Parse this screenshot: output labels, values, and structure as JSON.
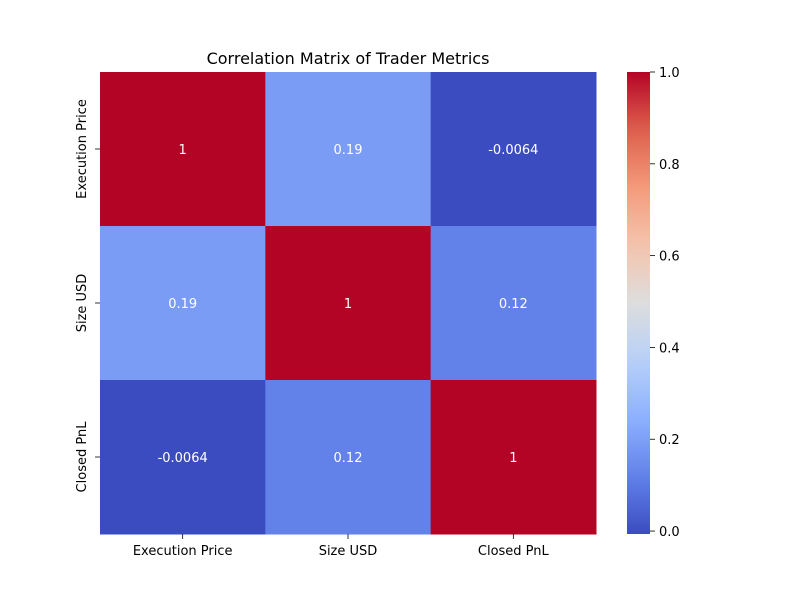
{
  "chart_data": {
    "type": "heatmap",
    "title": "Correlation Matrix of Trader Metrics",
    "x_categories": [
      "Execution Price",
      "Size USD",
      "Closed PnL"
    ],
    "y_categories": [
      "Execution Price",
      "Size USD",
      "Closed PnL"
    ],
    "values": [
      [
        1,
        0.19,
        -0.0064
      ],
      [
        0.19,
        1,
        0.12
      ],
      [
        -0.0064,
        0.12,
        1
      ]
    ],
    "annotations": [
      [
        "1",
        "0.19",
        "-0.0064"
      ],
      [
        "0.19",
        "1",
        "0.12"
      ],
      [
        "-0.0064",
        "0.12",
        "1"
      ]
    ],
    "colormap": "coolwarm",
    "colorbar": {
      "range": [
        -0.0064,
        1.0
      ],
      "ticks": [
        0.0,
        0.2,
        0.4,
        0.6,
        0.8,
        1.0
      ],
      "tick_labels": [
        "0.0",
        "0.2",
        "0.4",
        "0.6",
        "0.8",
        "1.0"
      ]
    }
  }
}
